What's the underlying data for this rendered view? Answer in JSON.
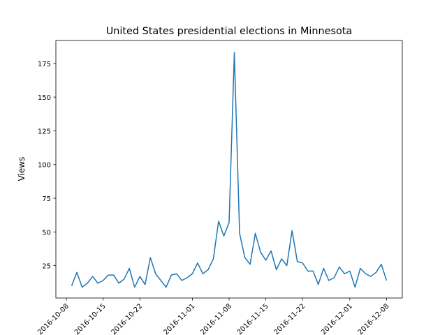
{
  "chart_data": {
    "type": "line",
    "title": "United States presidential elections in Minnesota",
    "xlabel": "",
    "ylabel": "Views",
    "x_start": "2016-10-09",
    "x_tick_labels": [
      "2016-10-08",
      "2016-10-15",
      "2016-10-22",
      "2016-11-01",
      "2016-11-08",
      "2016-11-15",
      "2016-11-22",
      "2016-12-01",
      "2016-12-08"
    ],
    "y_ticks": [
      25,
      50,
      75,
      100,
      125,
      150,
      175
    ],
    "xlim": [
      "2016-10-06",
      "2016-12-11"
    ],
    "ylim": [
      1,
      192
    ],
    "grid": false,
    "line_color": "#1f77b4",
    "series": [
      {
        "values": [
          10,
          20,
          9,
          12,
          17,
          12,
          14,
          18,
          18,
          12,
          15,
          23,
          9,
          17,
          11,
          31,
          19,
          14,
          9,
          18,
          19,
          14,
          16,
          19,
          27,
          19,
          22,
          30,
          58,
          47,
          57,
          183,
          49,
          31,
          26,
          49,
          35,
          29,
          36,
          22,
          30,
          25,
          51,
          28,
          27,
          21,
          21,
          11,
          23,
          14,
          16,
          24,
          19,
          21,
          9,
          23,
          19,
          17,
          20,
          26,
          14
        ]
      }
    ]
  }
}
